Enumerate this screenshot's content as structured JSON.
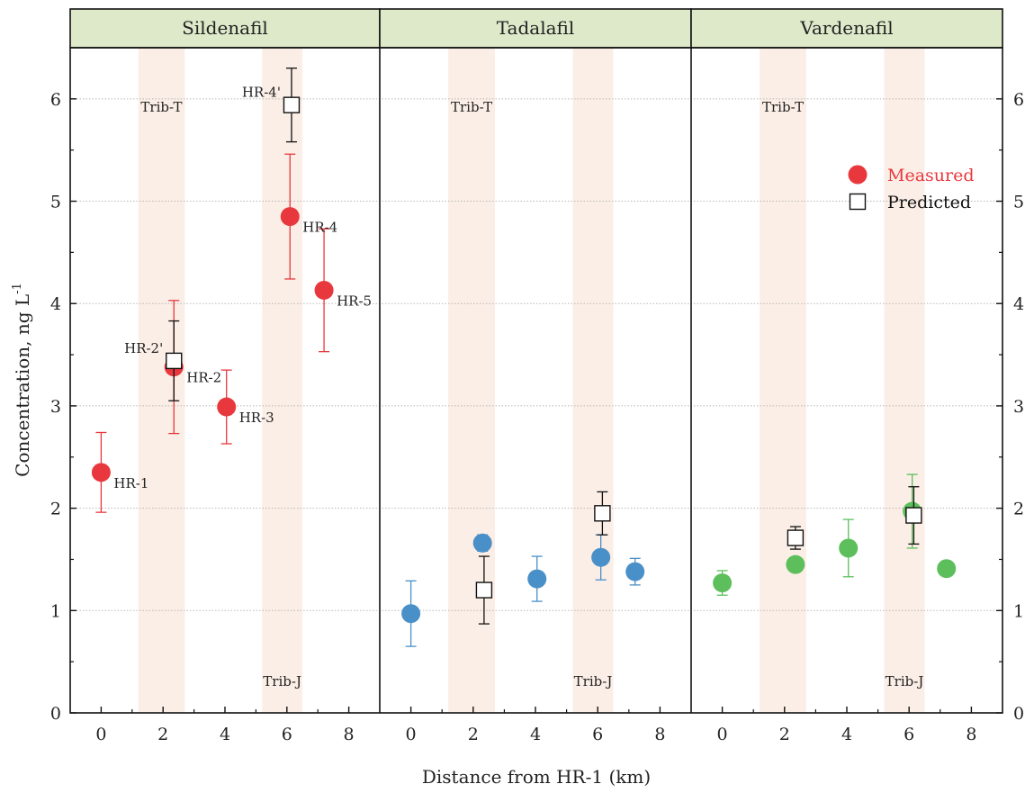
{
  "chart_data": {
    "type": "scatter",
    "xlabel": "Distance from HR-1 (km)",
    "ylabel": "Concentration, ng L",
    "ylabel_sup": "-1",
    "ylim": [
      0,
      6.5
    ],
    "xlim": [
      -1,
      9
    ],
    "xticks": [
      0,
      2,
      4,
      6,
      8
    ],
    "yticks": [
      0,
      1,
      2,
      3,
      4,
      5,
      6
    ],
    "grid": "horizontal-dotted",
    "legend_position": "top-right",
    "legend": [
      {
        "label": "Measured",
        "color": "#e8383d",
        "marker": "circle"
      },
      {
        "label": "Predicted",
        "color": "#000000",
        "marker": "open-square"
      }
    ],
    "tributary_bands": [
      {
        "name": "Trib-T",
        "x_range": [
          1.2,
          2.7
        ],
        "label_position": "top"
      },
      {
        "name": "Trib-J",
        "x_range": [
          5.2,
          6.5
        ],
        "label_position": "bottom"
      }
    ],
    "panels": [
      {
        "title": "Sildenafil",
        "measured_color": "#e8383d",
        "measured": [
          {
            "x": 0.0,
            "y": 2.35,
            "err": 0.39,
            "label": "HR-1"
          },
          {
            "x": 2.35,
            "y": 3.38,
            "err": 0.65,
            "label": "HR-2"
          },
          {
            "x": 4.05,
            "y": 2.99,
            "err": 0.36,
            "label": "HR-3"
          },
          {
            "x": 6.1,
            "y": 4.85,
            "err": 0.61,
            "label": "HR-4"
          },
          {
            "x": 7.2,
            "y": 4.13,
            "err": 0.6,
            "label": "HR-5"
          }
        ],
        "predicted": [
          {
            "x": 2.35,
            "y": 3.44,
            "err": 0.39,
            "label": "HR-2'"
          },
          {
            "x": 6.15,
            "y": 5.94,
            "err": 0.36,
            "label": "HR-4'"
          }
        ]
      },
      {
        "title": "Tadalafil",
        "measured_color": "#4a90c8",
        "measured": [
          {
            "x": 0.0,
            "y": 0.97,
            "err": 0.32
          },
          {
            "x": 2.3,
            "y": 1.66,
            "err": 0.08
          },
          {
            "x": 4.05,
            "y": 1.31,
            "err": 0.22
          },
          {
            "x": 6.1,
            "y": 1.52,
            "err": 0.22
          },
          {
            "x": 7.2,
            "y": 1.38,
            "err": 0.13
          }
        ],
        "predicted": [
          {
            "x": 2.35,
            "y": 1.2,
            "err": 0.33
          },
          {
            "x": 6.15,
            "y": 1.95,
            "err": 0.21
          }
        ]
      },
      {
        "title": "Vardenafil",
        "measured_color": "#5cbf5c",
        "measured": [
          {
            "x": 0.0,
            "y": 1.27,
            "err": 0.12
          },
          {
            "x": 2.35,
            "y": 1.45,
            "err": 0.05
          },
          {
            "x": 4.05,
            "y": 1.61,
            "err": 0.28
          },
          {
            "x": 6.1,
            "y": 1.97,
            "err": 0.36
          },
          {
            "x": 7.2,
            "y": 1.41,
            "err": 0.03
          }
        ],
        "predicted": [
          {
            "x": 2.35,
            "y": 1.71,
            "err": 0.11
          },
          {
            "x": 6.15,
            "y": 1.93,
            "err": 0.28
          }
        ]
      }
    ]
  }
}
